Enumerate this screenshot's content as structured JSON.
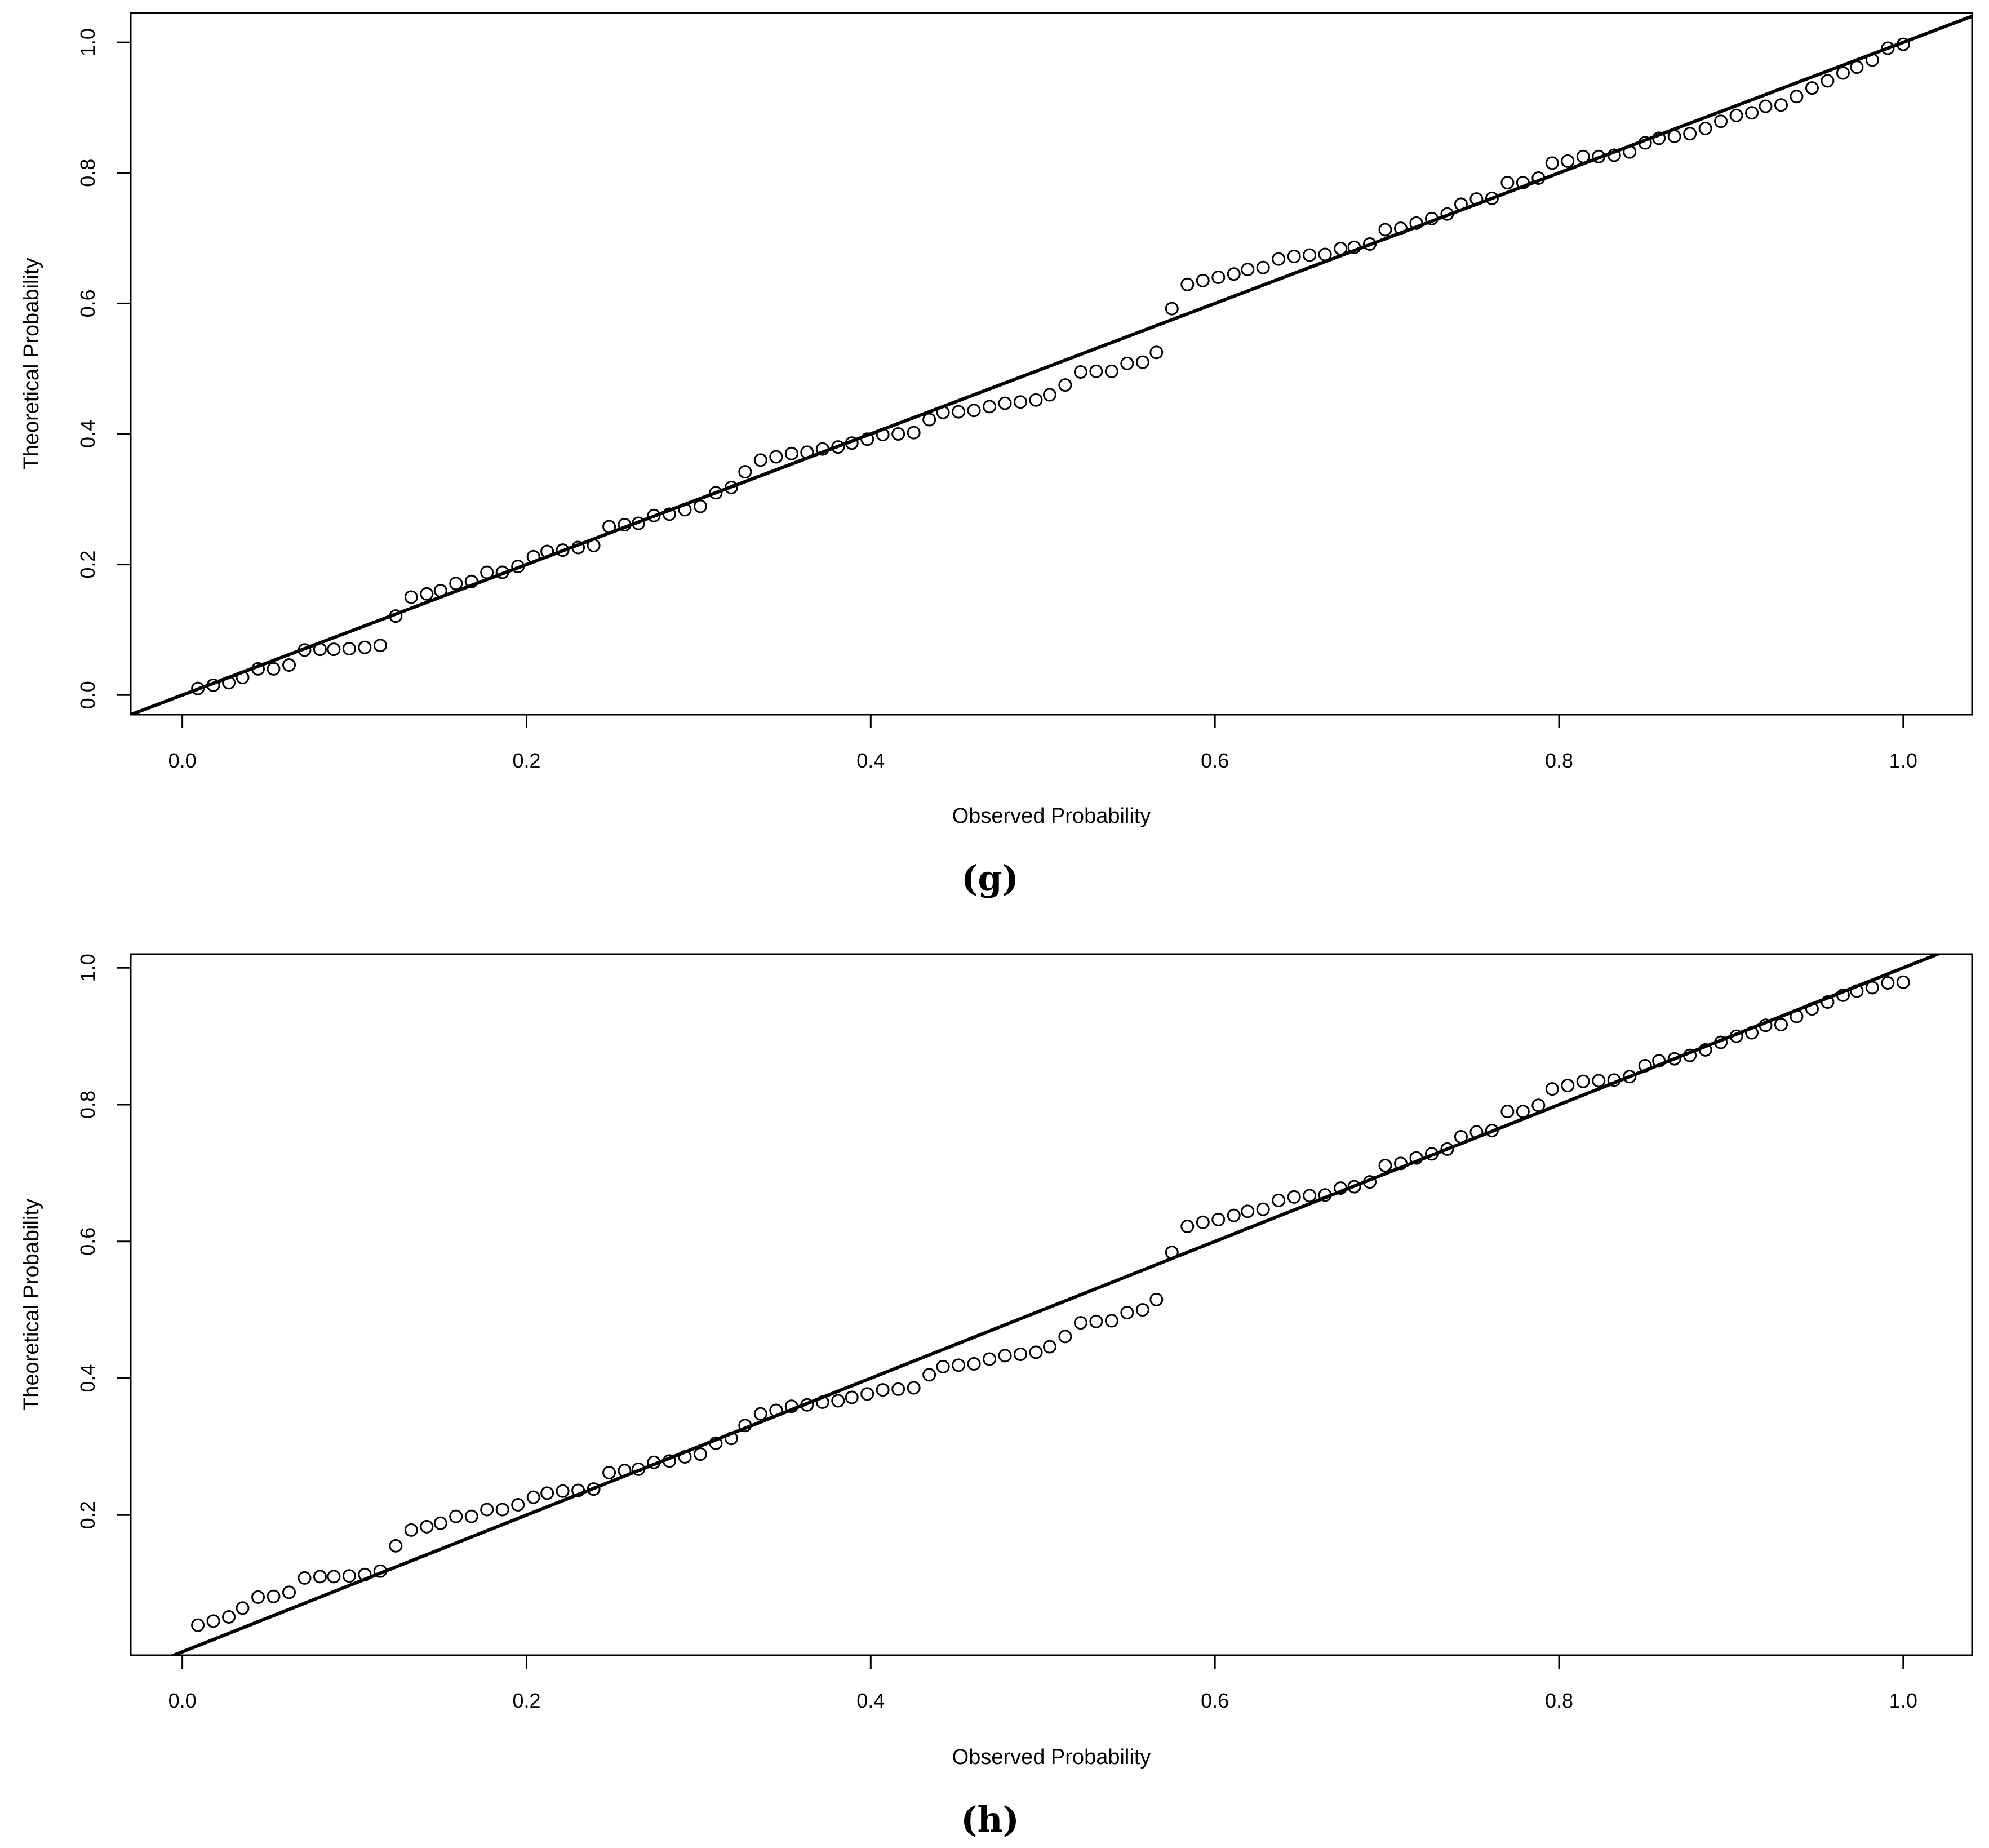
{
  "chart_data": [
    {
      "type": "scatter",
      "caption": "(g)",
      "xlabel": "Observed Probability",
      "ylabel": "Theoretical Probability",
      "xlim": [
        -0.03,
        1.04
      ],
      "ylim": [
        -0.03,
        1.045
      ],
      "x_ticks": [
        "0.0",
        "0.2",
        "0.4",
        "0.6",
        "0.8",
        "1.0"
      ],
      "y_ticks": [
        "0.0",
        "0.2",
        "0.4",
        "0.6",
        "0.8",
        "1.0"
      ],
      "reference_line": {
        "slope": 1,
        "intercept": 0
      },
      "points": {
        "x": [
          0.009,
          0.018,
          0.027,
          0.035,
          0.044,
          0.053,
          0.062,
          0.071,
          0.08,
          0.088,
          0.097,
          0.106,
          0.115,
          0.124,
          0.133,
          0.142,
          0.15,
          0.159,
          0.168,
          0.177,
          0.186,
          0.195,
          0.204,
          0.212,
          0.221,
          0.23,
          0.239,
          0.248,
          0.257,
          0.265,
          0.274,
          0.283,
          0.292,
          0.301,
          0.31,
          0.319,
          0.327,
          0.336,
          0.345,
          0.354,
          0.363,
          0.372,
          0.381,
          0.389,
          0.398,
          0.407,
          0.416,
          0.425,
          0.434,
          0.442,
          0.451,
          0.46,
          0.469,
          0.478,
          0.487,
          0.496,
          0.504,
          0.513,
          0.522,
          0.531,
          0.54,
          0.549,
          0.558,
          0.566,
          0.575,
          0.584,
          0.593,
          0.602,
          0.611,
          0.619,
          0.628,
          0.637,
          0.646,
          0.655,
          0.664,
          0.673,
          0.681,
          0.69,
          0.699,
          0.708,
          0.717,
          0.726,
          0.735,
          0.743,
          0.752,
          0.761,
          0.77,
          0.779,
          0.788,
          0.796,
          0.805,
          0.814,
          0.823,
          0.832,
          0.841,
          0.85,
          0.858,
          0.867,
          0.876,
          0.885,
          0.894,
          0.903,
          0.912,
          0.92,
          0.929,
          0.938,
          0.947,
          0.956,
          0.965,
          0.973,
          0.982,
          0.991,
          1.0
        ],
        "y": [
          0.01,
          0.015,
          0.019,
          0.027,
          0.04,
          0.04,
          0.046,
          0.069,
          0.07,
          0.07,
          0.071,
          0.073,
          0.076,
          0.121,
          0.15,
          0.155,
          0.16,
          0.171,
          0.174,
          0.188,
          0.188,
          0.197,
          0.212,
          0.22,
          0.222,
          0.226,
          0.229,
          0.258,
          0.261,
          0.263,
          0.275,
          0.277,
          0.284,
          0.289,
          0.31,
          0.318,
          0.342,
          0.36,
          0.365,
          0.37,
          0.372,
          0.377,
          0.38,
          0.386,
          0.392,
          0.399,
          0.4,
          0.402,
          0.422,
          0.433,
          0.434,
          0.436,
          0.442,
          0.447,
          0.449,
          0.452,
          0.46,
          0.475,
          0.495,
          0.496,
          0.496,
          0.508,
          0.51,
          0.525,
          0.592,
          0.629,
          0.635,
          0.64,
          0.645,
          0.652,
          0.655,
          0.668,
          0.672,
          0.674,
          0.675,
          0.684,
          0.686,
          0.691,
          0.713,
          0.715,
          0.723,
          0.73,
          0.737,
          0.752,
          0.76,
          0.761,
          0.785,
          0.785,
          0.792,
          0.815,
          0.818,
          0.825,
          0.825,
          0.827,
          0.832,
          0.846,
          0.853,
          0.856,
          0.86,
          0.868,
          0.879,
          0.888,
          0.892,
          0.902,
          0.904,
          0.917,
          0.93,
          0.941,
          0.953,
          0.962,
          0.973,
          0.991,
          0.997
        ]
      }
    },
    {
      "type": "scatter",
      "caption": "(h)",
      "xlabel": "Observed Probability",
      "ylabel": "Theoretical Probability",
      "xlim": [
        -0.03,
        1.04
      ],
      "ylim": [
        -0.005,
        1.02
      ],
      "x_ticks": [
        "0.0",
        "0.2",
        "0.4",
        "0.6",
        "0.8",
        "1.0"
      ],
      "y_ticks": [
        "0.2",
        "0.4",
        "0.6",
        "0.8",
        "1.0"
      ],
      "reference_line": {
        "slope": 1,
        "intercept": 0
      },
      "points": {
        "x": [
          0.009,
          0.018,
          0.027,
          0.035,
          0.044,
          0.053,
          0.062,
          0.071,
          0.08,
          0.088,
          0.097,
          0.106,
          0.115,
          0.124,
          0.133,
          0.142,
          0.15,
          0.159,
          0.168,
          0.177,
          0.186,
          0.195,
          0.204,
          0.212,
          0.221,
          0.23,
          0.239,
          0.248,
          0.257,
          0.265,
          0.274,
          0.283,
          0.292,
          0.301,
          0.31,
          0.319,
          0.327,
          0.336,
          0.345,
          0.354,
          0.363,
          0.372,
          0.381,
          0.389,
          0.398,
          0.407,
          0.416,
          0.425,
          0.434,
          0.442,
          0.451,
          0.46,
          0.469,
          0.478,
          0.487,
          0.496,
          0.504,
          0.513,
          0.522,
          0.531,
          0.54,
          0.549,
          0.558,
          0.566,
          0.575,
          0.584,
          0.593,
          0.602,
          0.611,
          0.619,
          0.628,
          0.637,
          0.646,
          0.655,
          0.664,
          0.673,
          0.681,
          0.69,
          0.699,
          0.708,
          0.717,
          0.726,
          0.735,
          0.743,
          0.752,
          0.761,
          0.77,
          0.779,
          0.788,
          0.796,
          0.805,
          0.814,
          0.823,
          0.832,
          0.841,
          0.85,
          0.858,
          0.867,
          0.876,
          0.885,
          0.894,
          0.903,
          0.912,
          0.92,
          0.929,
          0.938,
          0.947,
          0.956,
          0.965,
          0.973,
          0.982,
          0.991,
          1.0
        ],
        "y": [
          0.039,
          0.045,
          0.051,
          0.064,
          0.08,
          0.081,
          0.087,
          0.108,
          0.11,
          0.11,
          0.111,
          0.113,
          0.118,
          0.155,
          0.178,
          0.183,
          0.188,
          0.198,
          0.198,
          0.208,
          0.208,
          0.215,
          0.226,
          0.232,
          0.235,
          0.236,
          0.238,
          0.262,
          0.265,
          0.267,
          0.277,
          0.279,
          0.285,
          0.289,
          0.305,
          0.312,
          0.331,
          0.348,
          0.353,
          0.359,
          0.361,
          0.365,
          0.367,
          0.372,
          0.377,
          0.383,
          0.384,
          0.386,
          0.405,
          0.417,
          0.419,
          0.421,
          0.428,
          0.433,
          0.435,
          0.438,
          0.446,
          0.461,
          0.481,
          0.483,
          0.484,
          0.496,
          0.5,
          0.515,
          0.584,
          0.622,
          0.628,
          0.632,
          0.638,
          0.644,
          0.647,
          0.66,
          0.665,
          0.667,
          0.668,
          0.678,
          0.68,
          0.687,
          0.711,
          0.714,
          0.722,
          0.728,
          0.735,
          0.753,
          0.76,
          0.762,
          0.79,
          0.79,
          0.799,
          0.823,
          0.828,
          0.834,
          0.835,
          0.836,
          0.841,
          0.857,
          0.864,
          0.867,
          0.872,
          0.88,
          0.891,
          0.9,
          0.905,
          0.916,
          0.917,
          0.929,
          0.94,
          0.95,
          0.96,
          0.966,
          0.971,
          0.978,
          0.979
        ]
      }
    }
  ]
}
